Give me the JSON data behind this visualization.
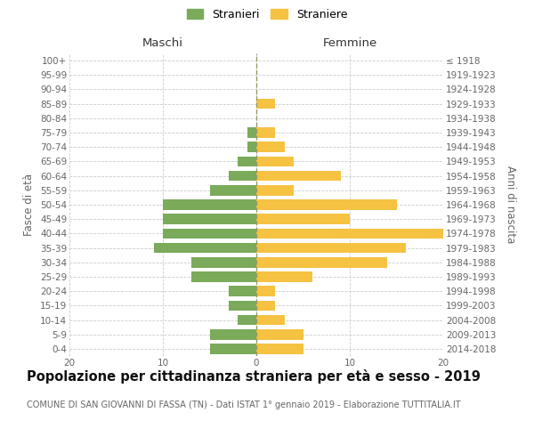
{
  "age_groups": [
    "100+",
    "95-99",
    "90-94",
    "85-89",
    "80-84",
    "75-79",
    "70-74",
    "65-69",
    "60-64",
    "55-59",
    "50-54",
    "45-49",
    "40-44",
    "35-39",
    "30-34",
    "25-29",
    "20-24",
    "15-19",
    "10-14",
    "5-9",
    "0-4"
  ],
  "birth_years": [
    "≤ 1918",
    "1919-1923",
    "1924-1928",
    "1929-1933",
    "1934-1938",
    "1939-1943",
    "1944-1948",
    "1949-1953",
    "1954-1958",
    "1959-1963",
    "1964-1968",
    "1969-1973",
    "1974-1978",
    "1979-1983",
    "1984-1988",
    "1989-1993",
    "1994-1998",
    "1999-2003",
    "2004-2008",
    "2009-2013",
    "2014-2018"
  ],
  "maschi": [
    0,
    0,
    0,
    0,
    0,
    1,
    1,
    2,
    3,
    5,
    10,
    10,
    10,
    11,
    7,
    7,
    3,
    3,
    2,
    5,
    5
  ],
  "femmine": [
    0,
    0,
    0,
    2,
    0,
    2,
    3,
    4,
    9,
    4,
    15,
    10,
    20,
    16,
    14,
    6,
    2,
    2,
    3,
    5,
    5
  ],
  "color_maschi": "#7aaa5a",
  "color_femmine": "#f5c242",
  "bg_color": "#ffffff",
  "grid_color": "#cccccc",
  "dashed_line_color": "#999966",
  "xlim": 20,
  "title": "Popolazione per cittadinanza straniera per età e sesso - 2019",
  "subtitle": "COMUNE DI SAN GIOVANNI DI FASSA (TN) - Dati ISTAT 1° gennaio 2019 - Elaborazione TUTTITALIA.IT",
  "xlabel_left": "Maschi",
  "xlabel_right": "Femmine",
  "ylabel_left": "Fasce di età",
  "ylabel_right": "Anni di nascita",
  "legend_maschi": "Stranieri",
  "legend_femmine": "Straniere",
  "title_fontsize": 10.5,
  "subtitle_fontsize": 7,
  "label_fontsize": 8.5,
  "tick_fontsize": 7.5
}
